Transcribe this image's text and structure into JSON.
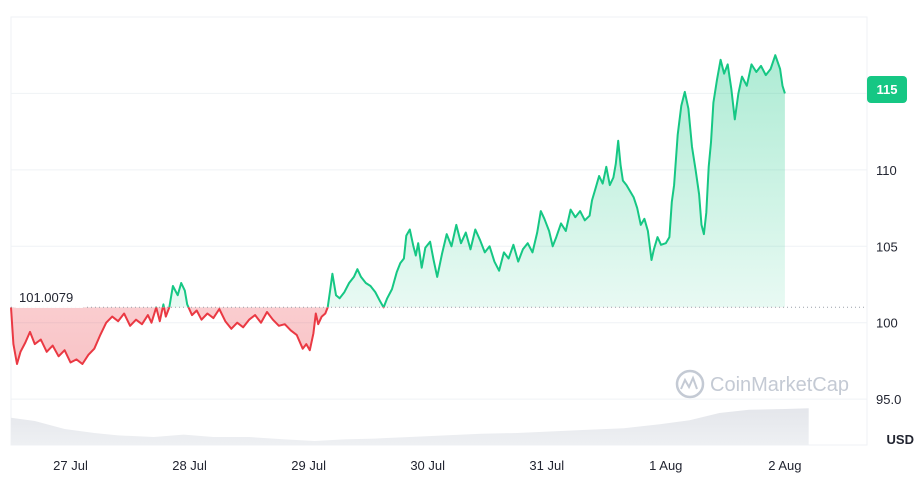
{
  "chart_data": {
    "type": "area",
    "baseline_label": "101.0079",
    "baseline": 101.0079,
    "current_price_label": "115",
    "current_price": 115,
    "unit_label": "USD",
    "watermark": "CoinMarketCap",
    "y_ticks": [
      {
        "value": 95,
        "label": "95.0"
      },
      {
        "value": 100,
        "label": "100"
      },
      {
        "value": 105,
        "label": "105"
      },
      {
        "value": 110,
        "label": "110"
      },
      {
        "value": 115,
        "label": ""
      }
    ],
    "ylim": [
      92,
      120
    ],
    "x_ticks": [
      {
        "label": "27 Jul",
        "t": 0.5
      },
      {
        "label": "28 Jul",
        "t": 1.5
      },
      {
        "label": "29 Jul",
        "t": 2.5
      },
      {
        "label": "30 Jul",
        "t": 3.5
      },
      {
        "label": "31 Jul",
        "t": 4.5
      },
      {
        "label": "1 Aug",
        "t": 5.5
      },
      {
        "label": "2 Aug",
        "t": 6.5
      }
    ],
    "xlim": [
      0,
      7.19
    ],
    "series": [
      {
        "points": [
          [
            0.0,
            101.0
          ],
          [
            0.02,
            98.6
          ],
          [
            0.05,
            97.3
          ],
          [
            0.08,
            98.1
          ],
          [
            0.12,
            98.7
          ],
          [
            0.16,
            99.4
          ],
          [
            0.2,
            98.6
          ],
          [
            0.25,
            98.9
          ],
          [
            0.3,
            98.1
          ],
          [
            0.35,
            98.5
          ],
          [
            0.4,
            97.8
          ],
          [
            0.45,
            98.2
          ],
          [
            0.5,
            97.4
          ],
          [
            0.55,
            97.6
          ],
          [
            0.6,
            97.3
          ],
          [
            0.65,
            97.9
          ],
          [
            0.7,
            98.3
          ],
          [
            0.75,
            99.2
          ],
          [
            0.8,
            100.0
          ],
          [
            0.85,
            100.4
          ],
          [
            0.9,
            100.1
          ],
          [
            0.95,
            100.6
          ],
          [
            1.0,
            99.8
          ],
          [
            1.05,
            100.2
          ],
          [
            1.1,
            99.9
          ],
          [
            1.15,
            100.5
          ],
          [
            1.18,
            100.0
          ],
          [
            1.22,
            101.0
          ],
          [
            1.25,
            100.1
          ],
          [
            1.28,
            101.2
          ],
          [
            1.3,
            100.4
          ],
          [
            1.33,
            101.0
          ],
          [
            1.36,
            102.4
          ],
          [
            1.4,
            101.8
          ],
          [
            1.43,
            102.6
          ],
          [
            1.46,
            102.1
          ],
          [
            1.48,
            101.2
          ],
          [
            1.52,
            100.5
          ],
          [
            1.56,
            100.8
          ],
          [
            1.6,
            100.2
          ],
          [
            1.65,
            100.6
          ],
          [
            1.7,
            100.3
          ],
          [
            1.75,
            100.9
          ],
          [
            1.8,
            100.1
          ],
          [
            1.85,
            99.6
          ],
          [
            1.9,
            100.0
          ],
          [
            1.95,
            99.7
          ],
          [
            2.0,
            100.2
          ],
          [
            2.05,
            100.5
          ],
          [
            2.1,
            100.0
          ],
          [
            2.15,
            100.7
          ],
          [
            2.2,
            100.2
          ],
          [
            2.25,
            99.8
          ],
          [
            2.3,
            99.9
          ],
          [
            2.35,
            99.5
          ],
          [
            2.4,
            99.2
          ],
          [
            2.45,
            98.3
          ],
          [
            2.48,
            98.6
          ],
          [
            2.51,
            98.2
          ],
          [
            2.54,
            99.3
          ],
          [
            2.56,
            100.6
          ],
          [
            2.58,
            99.9
          ],
          [
            2.61,
            100.4
          ],
          [
            2.64,
            100.6
          ],
          [
            2.66,
            101.0
          ],
          [
            2.68,
            102.1
          ],
          [
            2.7,
            103.2
          ],
          [
            2.73,
            101.8
          ],
          [
            2.76,
            101.6
          ],
          [
            2.8,
            102.0
          ],
          [
            2.84,
            102.6
          ],
          [
            2.88,
            103.0
          ],
          [
            2.91,
            103.5
          ],
          [
            2.94,
            103.0
          ],
          [
            2.98,
            102.6
          ],
          [
            3.02,
            102.4
          ],
          [
            3.06,
            102.0
          ],
          [
            3.1,
            101.4
          ],
          [
            3.13,
            101.0
          ],
          [
            3.16,
            101.6
          ],
          [
            3.2,
            102.2
          ],
          [
            3.24,
            103.3
          ],
          [
            3.27,
            103.9
          ],
          [
            3.3,
            104.2
          ],
          [
            3.32,
            105.7
          ],
          [
            3.35,
            106.1
          ],
          [
            3.38,
            105.0
          ],
          [
            3.4,
            104.4
          ],
          [
            3.42,
            105.2
          ],
          [
            3.45,
            103.6
          ],
          [
            3.48,
            104.9
          ],
          [
            3.52,
            105.3
          ],
          [
            3.55,
            104.1
          ],
          [
            3.58,
            103.0
          ],
          [
            3.62,
            104.5
          ],
          [
            3.66,
            105.8
          ],
          [
            3.7,
            105.0
          ],
          [
            3.74,
            106.4
          ],
          [
            3.78,
            105.2
          ],
          [
            3.82,
            105.9
          ],
          [
            3.86,
            104.8
          ],
          [
            3.9,
            106.1
          ],
          [
            3.94,
            105.4
          ],
          [
            3.98,
            104.6
          ],
          [
            4.02,
            105.0
          ],
          [
            4.06,
            104.0
          ],
          [
            4.1,
            103.4
          ],
          [
            4.14,
            104.6
          ],
          [
            4.18,
            104.2
          ],
          [
            4.22,
            105.1
          ],
          [
            4.26,
            104.0
          ],
          [
            4.3,
            104.8
          ],
          [
            4.34,
            105.2
          ],
          [
            4.38,
            104.6
          ],
          [
            4.42,
            105.9
          ],
          [
            4.45,
            107.3
          ],
          [
            4.48,
            106.8
          ],
          [
            4.52,
            106.0
          ],
          [
            4.55,
            105.0
          ],
          [
            4.58,
            105.6
          ],
          [
            4.62,
            106.5
          ],
          [
            4.66,
            106.0
          ],
          [
            4.7,
            107.4
          ],
          [
            4.74,
            106.9
          ],
          [
            4.78,
            107.3
          ],
          [
            4.82,
            106.7
          ],
          [
            4.86,
            107.0
          ],
          [
            4.88,
            108.0
          ],
          [
            4.91,
            108.8
          ],
          [
            4.94,
            109.6
          ],
          [
            4.97,
            109.1
          ],
          [
            5.0,
            110.2
          ],
          [
            5.03,
            109.0
          ],
          [
            5.06,
            109.5
          ],
          [
            5.08,
            110.4
          ],
          [
            5.1,
            111.9
          ],
          [
            5.12,
            110.3
          ],
          [
            5.14,
            109.3
          ],
          [
            5.17,
            109.0
          ],
          [
            5.2,
            108.6
          ],
          [
            5.23,
            108.2
          ],
          [
            5.26,
            107.5
          ],
          [
            5.29,
            106.4
          ],
          [
            5.32,
            106.8
          ],
          [
            5.35,
            106.0
          ],
          [
            5.38,
            104.1
          ],
          [
            5.4,
            104.8
          ],
          [
            5.43,
            105.6
          ],
          [
            5.46,
            105.1
          ],
          [
            5.5,
            105.2
          ],
          [
            5.53,
            105.6
          ],
          [
            5.55,
            107.9
          ],
          [
            5.57,
            109.0
          ],
          [
            5.6,
            112.3
          ],
          [
            5.63,
            114.2
          ],
          [
            5.66,
            115.1
          ],
          [
            5.69,
            114.0
          ],
          [
            5.72,
            111.5
          ],
          [
            5.75,
            110.0
          ],
          [
            5.78,
            108.4
          ],
          [
            5.8,
            106.4
          ],
          [
            5.82,
            105.8
          ],
          [
            5.84,
            107.2
          ],
          [
            5.86,
            110.2
          ],
          [
            5.88,
            111.8
          ],
          [
            5.9,
            114.4
          ],
          [
            5.93,
            115.9
          ],
          [
            5.96,
            117.2
          ],
          [
            5.99,
            116.3
          ],
          [
            6.02,
            116.9
          ],
          [
            6.05,
            115.3
          ],
          [
            6.08,
            113.3
          ],
          [
            6.11,
            115.0
          ],
          [
            6.14,
            116.1
          ],
          [
            6.18,
            115.5
          ],
          [
            6.22,
            116.9
          ],
          [
            6.26,
            116.4
          ],
          [
            6.3,
            116.8
          ],
          [
            6.34,
            116.2
          ],
          [
            6.38,
            116.6
          ],
          [
            6.42,
            117.5
          ],
          [
            6.46,
            116.6
          ],
          [
            6.48,
            115.5
          ],
          [
            6.5,
            115.0
          ]
        ]
      }
    ],
    "volume": [
      [
        0.0,
        0.34
      ],
      [
        0.2,
        0.3
      ],
      [
        0.45,
        0.2
      ],
      [
        0.7,
        0.15
      ],
      [
        0.9,
        0.12
      ],
      [
        1.2,
        0.1
      ],
      [
        1.45,
        0.13
      ],
      [
        1.7,
        0.1
      ],
      [
        2.0,
        0.1
      ],
      [
        2.3,
        0.07
      ],
      [
        2.55,
        0.05
      ],
      [
        2.8,
        0.07
      ],
      [
        3.05,
        0.08
      ],
      [
        3.35,
        0.1
      ],
      [
        3.65,
        0.12
      ],
      [
        3.95,
        0.14
      ],
      [
        4.25,
        0.15
      ],
      [
        4.55,
        0.17
      ],
      [
        4.85,
        0.19
      ],
      [
        5.15,
        0.21
      ],
      [
        5.45,
        0.26
      ],
      [
        5.7,
        0.31
      ],
      [
        5.95,
        0.4
      ],
      [
        6.2,
        0.44
      ],
      [
        6.5,
        0.45
      ],
      [
        6.7,
        0.46
      ]
    ],
    "colors": {
      "up": "#16c784",
      "down": "#ea3943",
      "grid": "#eff2f5",
      "axis_text": "#222531",
      "volume": "#e6e8ec"
    }
  }
}
